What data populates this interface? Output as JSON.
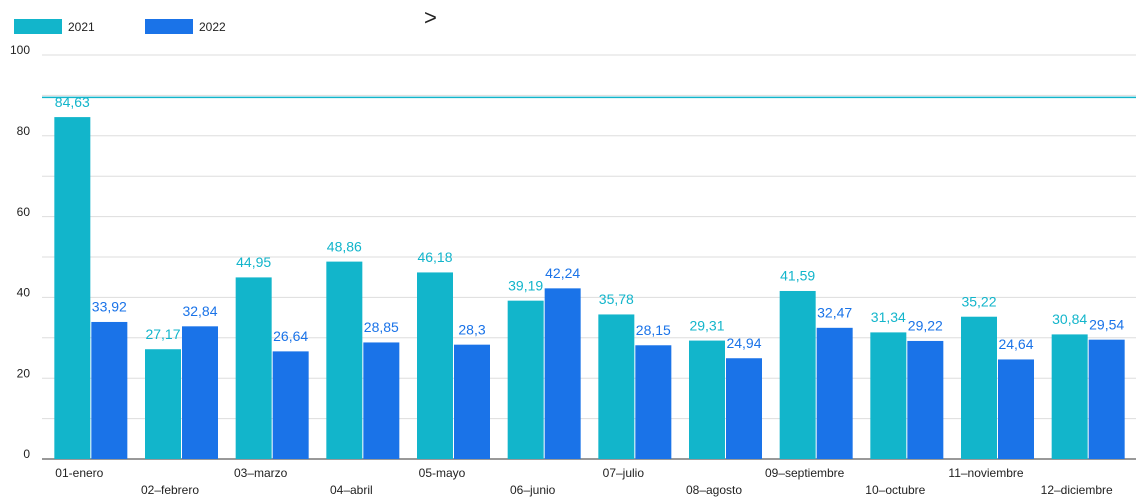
{
  "chart_data": {
    "type": "bar",
    "annotation": ">",
    "categories": [
      "01-enero",
      "02–febrero",
      "03–marzo",
      "04–abril",
      "05-mayo",
      "06–junio",
      "07–julio",
      "08–agosto",
      "09–septiembre",
      "10–octubre",
      "11–noviembre",
      "12–diciembre"
    ],
    "series": [
      {
        "name": "2021",
        "color": "#12b5cb",
        "values": [
          84.63,
          27.17,
          44.95,
          48.86,
          46.18,
          39.19,
          35.78,
          29.31,
          41.59,
          31.34,
          35.22,
          30.84
        ],
        "value_labels": [
          "84,63",
          "27,17",
          "44,95",
          "48,86",
          "46,18",
          "39,19",
          "35,78",
          "29,31",
          "41,59",
          "31,34",
          "35,22",
          "30,84"
        ]
      },
      {
        "name": "2022",
        "color": "#1a73e8",
        "values": [
          33.92,
          32.84,
          26.64,
          28.85,
          28.3,
          42.24,
          28.15,
          24.94,
          32.47,
          29.22,
          24.64,
          29.54
        ],
        "value_labels": [
          "33,92",
          "32,84",
          "26,64",
          "28,85",
          "28,3",
          "42,24",
          "28,15",
          "24,94",
          "32,47",
          "29,22",
          "24,64",
          "29,54"
        ]
      }
    ],
    "ylim": [
      0,
      100
    ],
    "yticks": [
      0,
      20,
      40,
      60,
      80,
      100
    ],
    "minor_yticks": [
      10,
      30,
      50,
      70,
      90
    ],
    "grid": true,
    "reference_line": {
      "value": 89.5,
      "color": "#12b5cb"
    },
    "legend": "top-left"
  }
}
